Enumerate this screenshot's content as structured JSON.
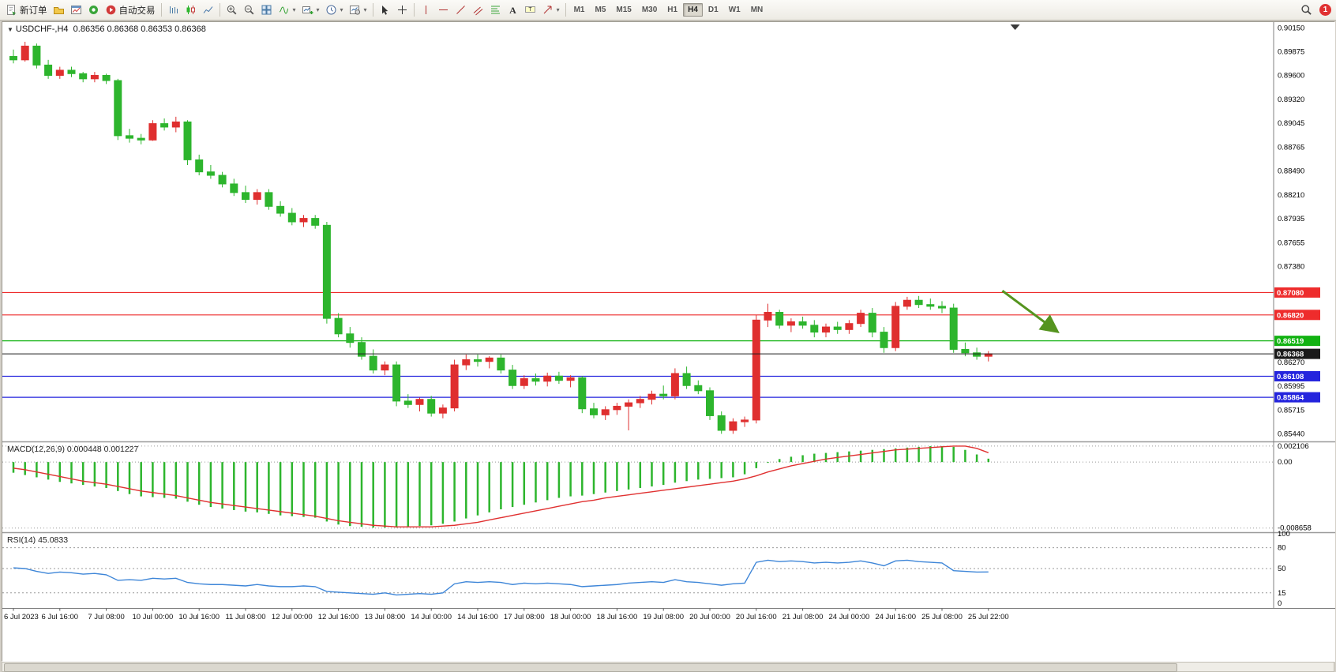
{
  "app": {
    "notification_count": "1"
  },
  "toolbar": {
    "new_order_label": "新订单",
    "auto_trading_label": "自动交易",
    "timeframes": [
      "M1",
      "M5",
      "M15",
      "M30",
      "H1",
      "H4",
      "D1",
      "W1",
      "MN"
    ],
    "active_timeframe": "H4"
  },
  "chart_data": [
    {
      "type": "candlestick",
      "symbol": "USDCHF-",
      "period": "H4",
      "header": "USDCHF-,H4",
      "ohlc_text": "0.86356 0.86368 0.86353 0.86368",
      "bull_color": "#df2f2f",
      "bear_color": "#2db52d",
      "ylim": [
        0.8537,
        0.902
      ],
      "y_ticks": [
        "0.90150",
        "0.89875",
        "0.89600",
        "0.89320",
        "0.89045",
        "0.88765",
        "0.88490",
        "0.88210",
        "0.87935",
        "0.87655",
        "0.87380",
        "0.86270",
        "0.85995",
        "0.85715",
        "0.85440"
      ],
      "hlines": [
        {
          "value": 0.8708,
          "label": "0.87080",
          "color": "#ee2c2c"
        },
        {
          "value": 0.8682,
          "label": "0.86820",
          "color": "#ee2c2c"
        },
        {
          "value": 0.86519,
          "label": "0.86519",
          "color": "#12b212"
        },
        {
          "value": 0.86368,
          "label": "0.86368",
          "color": "#1a1a1a",
          "current": true
        },
        {
          "value": 0.86108,
          "label": "0.86108",
          "color": "#2424dd"
        },
        {
          "value": 0.85864,
          "label": "0.85864",
          "color": "#2424dd"
        }
      ],
      "x_labels": [
        "6 Jul 2023",
        "6 Jul 16:00",
        "7 Jul 08:00",
        "10 Jul 00:00",
        "10 Jul 16:00",
        "11 Jul 08:00",
        "12 Jul 00:00",
        "12 Jul 16:00",
        "13 Jul 08:00",
        "14 Jul 00:00",
        "14 Jul 16:00",
        "17 Jul 08:00",
        "18 Jul 00:00",
        "18 Jul 16:00",
        "19 Jul 08:00",
        "20 Jul 00:00",
        "20 Jul 16:00",
        "21 Jul 08:00",
        "24 Jul 00:00",
        "24 Jul 16:00",
        "25 Jul 08:00",
        "25 Jul 22:00"
      ],
      "x_label_indices": [
        0,
        4,
        8,
        12,
        16,
        20,
        24,
        28,
        32,
        36,
        40,
        44,
        48,
        52,
        56,
        60,
        64,
        68,
        72,
        76,
        80,
        84
      ],
      "candles": [
        [
          0.8982,
          0.899,
          0.8974,
          0.8978
        ],
        [
          0.8978,
          0.8999,
          0.8976,
          0.8994
        ],
        [
          0.8994,
          0.8997,
          0.8968,
          0.8972
        ],
        [
          0.8972,
          0.8978,
          0.8956,
          0.896
        ],
        [
          0.896,
          0.897,
          0.8956,
          0.8966
        ],
        [
          0.8966,
          0.897,
          0.8958,
          0.8962
        ],
        [
          0.8962,
          0.8964,
          0.8952,
          0.8956
        ],
        [
          0.8956,
          0.8964,
          0.8952,
          0.896
        ],
        [
          0.896,
          0.8962,
          0.895,
          0.8954
        ],
        [
          0.8954,
          0.8956,
          0.8885,
          0.889
        ],
        [
          0.889,
          0.8898,
          0.8882,
          0.8887
        ],
        [
          0.8887,
          0.8892,
          0.888,
          0.8885
        ],
        [
          0.8885,
          0.8908,
          0.8884,
          0.8904
        ],
        [
          0.8904,
          0.891,
          0.8896,
          0.89
        ],
        [
          0.89,
          0.8912,
          0.8894,
          0.8906
        ],
        [
          0.8906,
          0.8908,
          0.8856,
          0.8862
        ],
        [
          0.8862,
          0.8868,
          0.8844,
          0.8848
        ],
        [
          0.8848,
          0.8856,
          0.884,
          0.8844
        ],
        [
          0.8844,
          0.8848,
          0.883,
          0.8834
        ],
        [
          0.8834,
          0.884,
          0.882,
          0.8824
        ],
        [
          0.8824,
          0.8832,
          0.8812,
          0.8816
        ],
        [
          0.8816,
          0.8828,
          0.881,
          0.8824
        ],
        [
          0.8824,
          0.8828,
          0.8804,
          0.8808
        ],
        [
          0.8808,
          0.8814,
          0.8796,
          0.88
        ],
        [
          0.88,
          0.8806,
          0.8786,
          0.879
        ],
        [
          0.879,
          0.8798,
          0.8784,
          0.8794
        ],
        [
          0.8794,
          0.8798,
          0.8782,
          0.8786
        ],
        [
          0.8786,
          0.879,
          0.8672,
          0.8678
        ],
        [
          0.8678,
          0.8684,
          0.8656,
          0.866
        ],
        [
          0.866,
          0.8668,
          0.8644,
          0.865
        ],
        [
          0.865,
          0.8656,
          0.863,
          0.8634
        ],
        [
          0.8634,
          0.8642,
          0.8614,
          0.8618
        ],
        [
          0.8618,
          0.8628,
          0.8612,
          0.8624
        ],
        [
          0.8624,
          0.8628,
          0.8576,
          0.8582
        ],
        [
          0.8582,
          0.859,
          0.8574,
          0.8578
        ],
        [
          0.8578,
          0.8586,
          0.857,
          0.8584
        ],
        [
          0.8584,
          0.8588,
          0.8564,
          0.8568
        ],
        [
          0.8568,
          0.8578,
          0.8562,
          0.8574
        ],
        [
          0.8574,
          0.863,
          0.857,
          0.8624
        ],
        [
          0.8624,
          0.8636,
          0.8618,
          0.863
        ],
        [
          0.863,
          0.8636,
          0.8622,
          0.8628
        ],
        [
          0.8628,
          0.8634,
          0.862,
          0.8632
        ],
        [
          0.8632,
          0.8636,
          0.8614,
          0.8618
        ],
        [
          0.8618,
          0.8624,
          0.8596,
          0.86
        ],
        [
          0.86,
          0.8612,
          0.8596,
          0.8608
        ],
        [
          0.8608,
          0.8614,
          0.86,
          0.8605
        ],
        [
          0.8605,
          0.8615,
          0.8599,
          0.8611
        ],
        [
          0.8611,
          0.8616,
          0.8602,
          0.8606
        ],
        [
          0.8606,
          0.8612,
          0.8598,
          0.8609
        ],
        [
          0.8609,
          0.8611,
          0.8568,
          0.8573
        ],
        [
          0.8573,
          0.858,
          0.8562,
          0.8566
        ],
        [
          0.8566,
          0.8576,
          0.856,
          0.8572
        ],
        [
          0.8572,
          0.858,
          0.8566,
          0.8576
        ],
        [
          0.8576,
          0.8584,
          0.8548,
          0.858
        ],
        [
          0.858,
          0.8588,
          0.8574,
          0.8584
        ],
        [
          0.8584,
          0.8594,
          0.8578,
          0.859
        ],
        [
          0.859,
          0.86,
          0.8584,
          0.8588
        ],
        [
          0.8588,
          0.862,
          0.8584,
          0.8614
        ],
        [
          0.8614,
          0.8622,
          0.8596,
          0.86
        ],
        [
          0.86,
          0.8606,
          0.859,
          0.8594
        ],
        [
          0.8594,
          0.8598,
          0.856,
          0.8565
        ],
        [
          0.8565,
          0.857,
          0.8544,
          0.8548
        ],
        [
          0.8548,
          0.8562,
          0.8544,
          0.8558
        ],
        [
          0.8558,
          0.8564,
          0.8552,
          0.856
        ],
        [
          0.856,
          0.8682,
          0.8556,
          0.8676
        ],
        [
          0.8676,
          0.8695,
          0.8668,
          0.8685
        ],
        [
          0.8685,
          0.8688,
          0.8666,
          0.867
        ],
        [
          0.867,
          0.8678,
          0.8662,
          0.8674
        ],
        [
          0.8674,
          0.868,
          0.8666,
          0.867
        ],
        [
          0.867,
          0.8676,
          0.8656,
          0.8662
        ],
        [
          0.8662,
          0.8672,
          0.8656,
          0.8668
        ],
        [
          0.8668,
          0.8674,
          0.866,
          0.8665
        ],
        [
          0.8665,
          0.8676,
          0.866,
          0.8672
        ],
        [
          0.8672,
          0.8688,
          0.8668,
          0.8684
        ],
        [
          0.8684,
          0.869,
          0.8656,
          0.8662
        ],
        [
          0.8662,
          0.8668,
          0.8638,
          0.8644
        ],
        [
          0.8644,
          0.8697,
          0.864,
          0.8692
        ],
        [
          0.8692,
          0.8703,
          0.8688,
          0.8699
        ],
        [
          0.8699,
          0.8704,
          0.869,
          0.8694
        ],
        [
          0.8694,
          0.8701,
          0.8688,
          0.8692
        ],
        [
          0.8692,
          0.8698,
          0.8684,
          0.869
        ],
        [
          0.869,
          0.8695,
          0.8638,
          0.8642
        ],
        [
          0.8642,
          0.865,
          0.8634,
          0.8638
        ],
        [
          0.8638,
          0.8644,
          0.863,
          0.8634
        ],
        [
          0.8634,
          0.864,
          0.8628,
          0.86368
        ]
      ],
      "arrow": {
        "from_index": 85.2,
        "from_price": 0.871,
        "to_index": 89.8,
        "to_price": 0.8664,
        "color": "#55941f"
      },
      "shift_marker_index": 86.3
    },
    {
      "type": "macd",
      "label": "MACD(12,26,9) 0.000448 0.001227",
      "main_value": "0.000448",
      "signal_value": "0.001227",
      "hist_color": "#2db52d",
      "signal_color": "#e03131",
      "ylim": [
        -0.009,
        0.0024
      ],
      "y_ticks": [
        {
          "v": 0.002106,
          "t": "0.002106"
        },
        {
          "v": 0,
          "t": "0.00"
        },
        {
          "v": -0.008658,
          "t": "-0.008658"
        }
      ],
      "histogram": [
        -0.0014,
        -0.0017,
        -0.002,
        -0.0023,
        -0.0026,
        -0.0028,
        -0.003,
        -0.0032,
        -0.0034,
        -0.0038,
        -0.0042,
        -0.0045,
        -0.0046,
        -0.0047,
        -0.0048,
        -0.0052,
        -0.0056,
        -0.0059,
        -0.0061,
        -0.0063,
        -0.0065,
        -0.0066,
        -0.0068,
        -0.007,
        -0.0071,
        -0.0072,
        -0.0073,
        -0.0078,
        -0.0082,
        -0.0084,
        -0.0085,
        -0.0086,
        -0.0086,
        -0.0086,
        -0.0085,
        -0.0084,
        -0.0083,
        -0.0081,
        -0.0078,
        -0.0074,
        -0.007,
        -0.0066,
        -0.0062,
        -0.0059,
        -0.0056,
        -0.0053,
        -0.005,
        -0.0047,
        -0.0045,
        -0.0044,
        -0.0042,
        -0.004,
        -0.0038,
        -0.0036,
        -0.0034,
        -0.0032,
        -0.003,
        -0.0027,
        -0.0025,
        -0.0023,
        -0.0022,
        -0.0021,
        -0.002,
        -0.0016,
        -0.0008,
        0.0,
        0.0004,
        0.0007,
        0.0009,
        0.0011,
        0.0012,
        0.0013,
        0.0014,
        0.0015,
        0.0016,
        0.0017,
        0.0018,
        0.0019,
        0.002,
        0.0021,
        0.0021,
        0.002,
        0.0016,
        0.001,
        0.000448
      ],
      "signal": [
        -0.0008,
        -0.001,
        -0.0013,
        -0.0016,
        -0.0019,
        -0.0022,
        -0.0025,
        -0.0027,
        -0.0029,
        -0.0032,
        -0.0035,
        -0.0038,
        -0.004,
        -0.0042,
        -0.0044,
        -0.0047,
        -0.005,
        -0.0053,
        -0.0055,
        -0.0057,
        -0.0059,
        -0.0061,
        -0.0063,
        -0.0065,
        -0.0067,
        -0.0069,
        -0.0071,
        -0.0074,
        -0.0077,
        -0.0079,
        -0.0081,
        -0.0083,
        -0.0084,
        -0.0085,
        -0.0085,
        -0.0085,
        -0.0085,
        -0.0084,
        -0.0083,
        -0.0081,
        -0.0079,
        -0.0076,
        -0.0073,
        -0.007,
        -0.0067,
        -0.0064,
        -0.0061,
        -0.0058,
        -0.0055,
        -0.0052,
        -0.005,
        -0.0047,
        -0.0045,
        -0.0043,
        -0.0041,
        -0.0039,
        -0.0037,
        -0.0035,
        -0.0033,
        -0.0031,
        -0.0029,
        -0.0027,
        -0.0025,
        -0.0022,
        -0.0018,
        -0.0013,
        -0.0009,
        -0.0005,
        -0.0002,
        0.0001,
        0.0004,
        0.0006,
        0.0008,
        0.001,
        0.0012,
        0.0014,
        0.0016,
        0.0017,
        0.0018,
        0.0019,
        0.002,
        0.0021,
        0.0021,
        0.0018,
        0.001227
      ]
    },
    {
      "type": "rsi",
      "label": "RSI(14) 45.0833",
      "current_value": "45.0833",
      "line_color": "#3e86d8",
      "ylim": [
        0,
        107
      ],
      "levels": [
        80,
        50,
        15
      ],
      "y_ticks": [
        {
          "v": 100,
          "t": "100"
        },
        {
          "v": 80,
          "t": "80"
        },
        {
          "v": 50,
          "t": "50"
        },
        {
          "v": 15,
          "t": "15"
        },
        {
          "v": 0,
          "t": "0"
        }
      ],
      "values": [
        51,
        50,
        46,
        43,
        45,
        44,
        42,
        43,
        41,
        33,
        34,
        33,
        36,
        35,
        36,
        30,
        28,
        27,
        27,
        26,
        25,
        27,
        25,
        24,
        24,
        25,
        24,
        17,
        16,
        15,
        14,
        13,
        15,
        12,
        13,
        14,
        13,
        15,
        28,
        31,
        30,
        31,
        30,
        27,
        29,
        28,
        29,
        28,
        27,
        24,
        25,
        26,
        27,
        29,
        30,
        31,
        30,
        34,
        31,
        30,
        28,
        26,
        28,
        29,
        59,
        62,
        60,
        61,
        60,
        58,
        59,
        58,
        59,
        61,
        58,
        54,
        61,
        62,
        60,
        59,
        58,
        47,
        46,
        45,
        45.08
      ]
    }
  ]
}
